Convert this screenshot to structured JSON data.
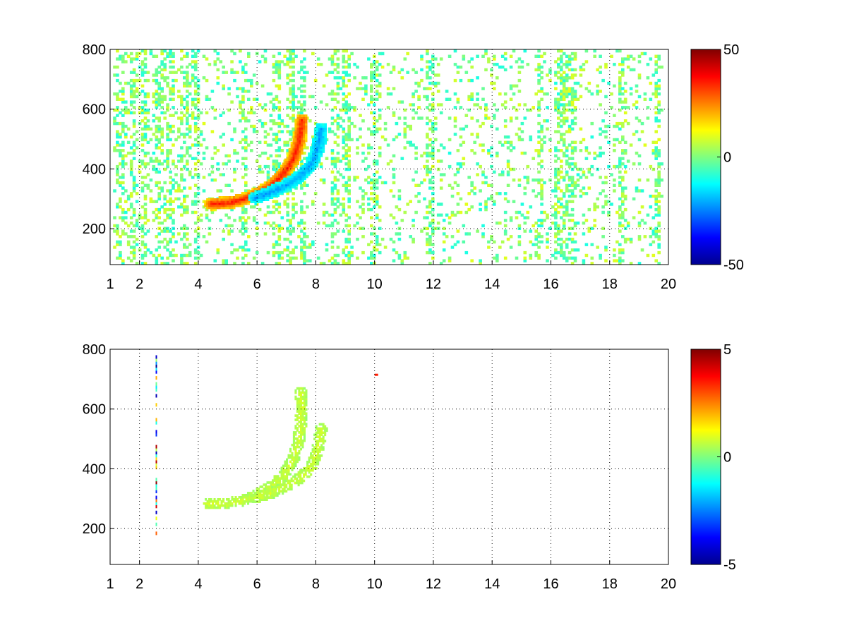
{
  "chart_data": [
    {
      "type": "heatmap",
      "title": "",
      "xlabel": "",
      "ylabel": "",
      "xlim": [
        1,
        20
      ],
      "ylim": [
        80,
        800
      ],
      "x_ticks": [
        1,
        2,
        4,
        6,
        8,
        10,
        12,
        14,
        16,
        18,
        20
      ],
      "y_ticks": [
        200,
        400,
        600,
        800
      ],
      "grid": true,
      "colormap": "jet",
      "colorbar": {
        "min": -50,
        "max": 50,
        "ticks": [
          -50,
          0,
          50
        ],
        "placement": "right"
      },
      "features": [
        {
          "kind": "positive-ridge",
          "points": [
            [
              4.4,
              280
            ],
            [
              5.0,
              283
            ],
            [
              5.5,
              295
            ],
            [
              6.0,
              315
            ],
            [
              6.5,
              345
            ],
            [
              6.9,
              385
            ],
            [
              7.2,
              430
            ],
            [
              7.4,
              490
            ],
            [
              7.5,
              560
            ]
          ],
          "value": 35
        },
        {
          "kind": "negative-ridge",
          "points": [
            [
              5.9,
              300
            ],
            [
              6.4,
              318
            ],
            [
              6.9,
              340
            ],
            [
              7.4,
              370
            ],
            [
              7.8,
              410
            ],
            [
              8.0,
              460
            ],
            [
              8.1,
              500
            ],
            [
              8.15,
              530
            ]
          ],
          "value": -22
        }
      ],
      "noise": {
        "amplitude": 10,
        "x_range": [
          1.1,
          19.8
        ]
      }
    },
    {
      "type": "heatmap",
      "title": "",
      "xlabel": "",
      "ylabel": "",
      "xlim": [
        1,
        20
      ],
      "ylim": [
        80,
        800
      ],
      "x_ticks": [
        1,
        2,
        4,
        6,
        8,
        10,
        12,
        14,
        16,
        18,
        20
      ],
      "y_ticks": [
        200,
        400,
        600,
        800
      ],
      "grid": true,
      "colormap": "jet",
      "colorbar": {
        "min": -5,
        "max": 5,
        "ticks": [
          -5,
          0,
          5
        ],
        "placement": "right"
      },
      "features": [
        {
          "kind": "ridge",
          "points": [
            [
              4.3,
              280
            ],
            [
              5.0,
              282
            ],
            [
              5.5,
              292
            ],
            [
              6.0,
              312
            ],
            [
              6.5,
              340
            ],
            [
              6.9,
              380
            ],
            [
              7.2,
              430
            ],
            [
              7.4,
              500
            ],
            [
              7.5,
              600
            ],
            [
              7.45,
              655
            ]
          ],
          "value": 0.8
        },
        {
          "kind": "ridge",
          "points": [
            [
              5.9,
              300
            ],
            [
              6.4,
              315
            ],
            [
              6.9,
              335
            ],
            [
              7.4,
              365
            ],
            [
              7.8,
              400
            ],
            [
              8.0,
              450
            ],
            [
              8.1,
              500
            ],
            [
              8.15,
              530
            ]
          ],
          "value": 0.8
        }
      ],
      "sparse_column": {
        "x": 2.55,
        "y_range": [
          160,
          790
        ]
      },
      "isolated_points": [
        {
          "x": 10.0,
          "y": 718,
          "value": 3.5
        }
      ]
    }
  ]
}
